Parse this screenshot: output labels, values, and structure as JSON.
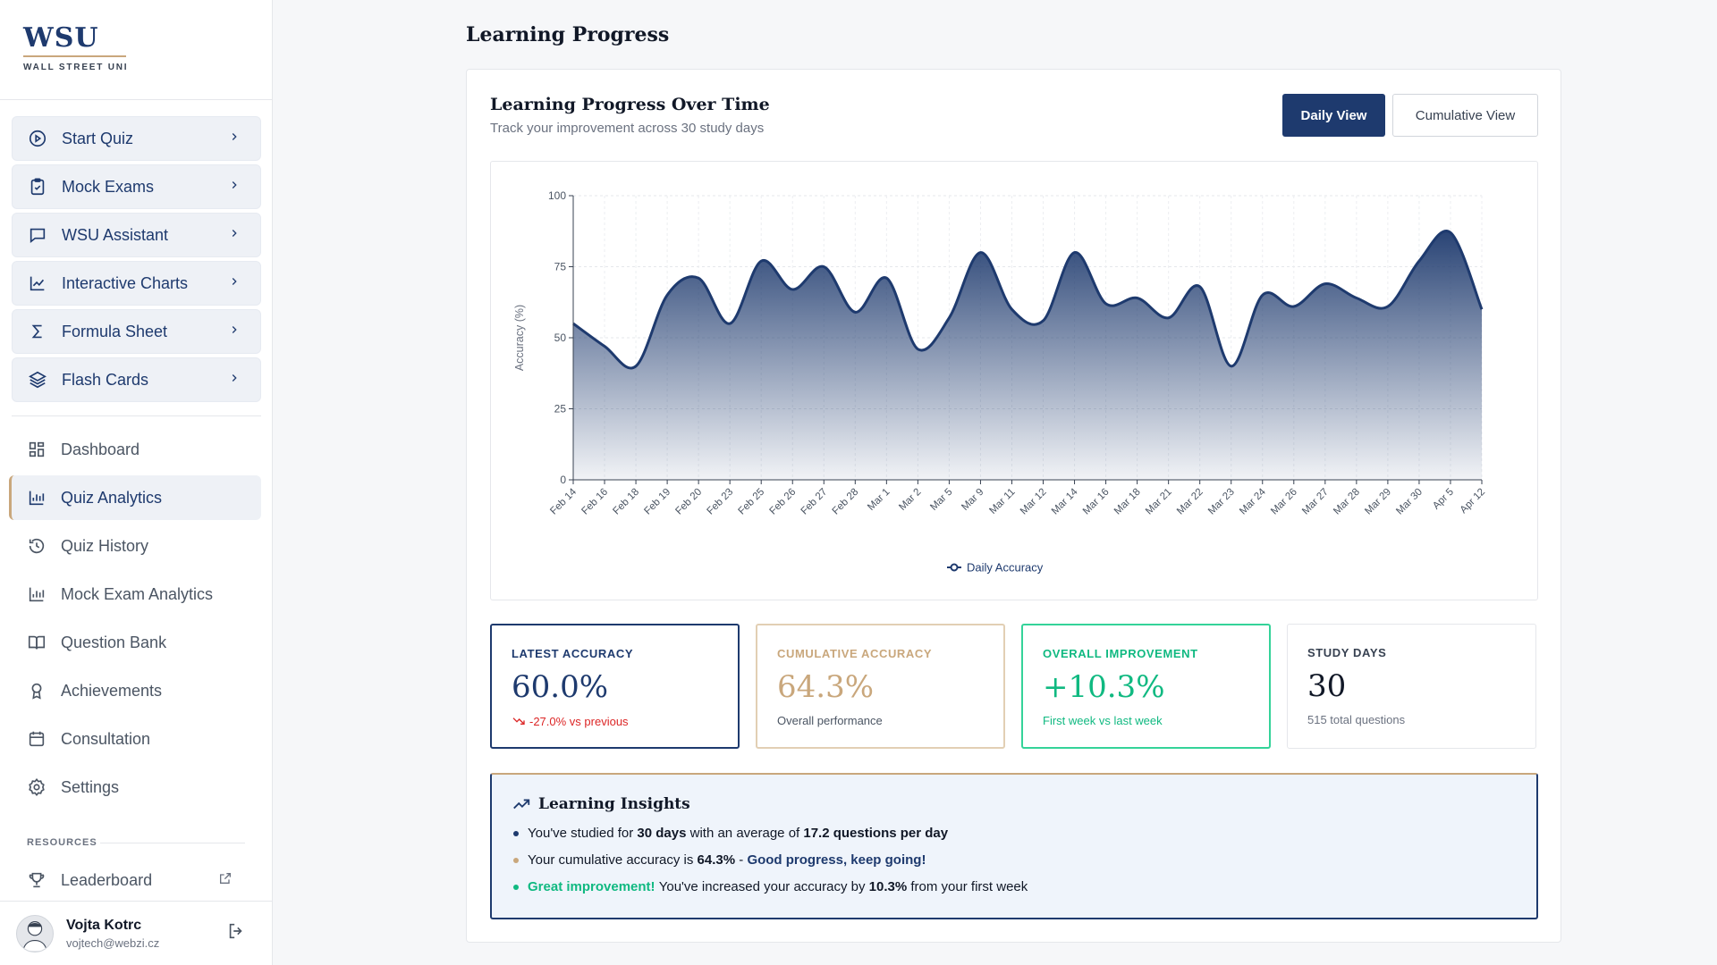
{
  "brand": {
    "mark": "WSU",
    "subtitle": "WALL STREET UNI"
  },
  "quick_actions": [
    {
      "label": "Start Quiz",
      "icon": "play-circle-icon"
    },
    {
      "label": "Mock Exams",
      "icon": "clipboard-check-icon"
    },
    {
      "label": "WSU Assistant",
      "icon": "chat-bubble-icon"
    },
    {
      "label": "Interactive Charts",
      "icon": "line-chart-icon"
    },
    {
      "label": "Formula Sheet",
      "icon": "sigma-icon"
    },
    {
      "label": "Flash Cards",
      "icon": "layers-icon"
    }
  ],
  "nav": [
    {
      "label": "Dashboard",
      "icon": "grid-icon"
    },
    {
      "label": "Quiz Analytics",
      "icon": "bar-chart-icon",
      "active": true
    },
    {
      "label": "Quiz History",
      "icon": "history-icon"
    },
    {
      "label": "Mock Exam Analytics",
      "icon": "bar-chart-icon"
    },
    {
      "label": "Question Bank",
      "icon": "book-icon"
    },
    {
      "label": "Achievements",
      "icon": "award-icon"
    },
    {
      "label": "Consultation",
      "icon": "calendar-icon"
    },
    {
      "label": "Settings",
      "icon": "gear-icon"
    }
  ],
  "resources": {
    "heading": "RESOURCES",
    "items": [
      {
        "label": "Leaderboard",
        "icon": "trophy-icon"
      }
    ]
  },
  "user": {
    "name": "Vojta Kotrc",
    "email": "vojtech@webzi.cz"
  },
  "page_title": "Learning Progress",
  "card": {
    "title": "Learning Progress Over Time",
    "subtitle": "Track your improvement across 30 study days",
    "daily_button": "Daily View",
    "cumulative_button": "Cumulative View"
  },
  "chart_data": {
    "type": "area",
    "ylabel": "Accuracy (%)",
    "ylim": [
      0,
      100
    ],
    "yticks": [
      0,
      25,
      50,
      75,
      100
    ],
    "grid": true,
    "legend": "bottom-center",
    "x": [
      "Feb 14",
      "Feb 16",
      "Feb 18",
      "Feb 19",
      "Feb 20",
      "Feb 23",
      "Feb 25",
      "Feb 26",
      "Feb 27",
      "Feb 28",
      "Mar 1",
      "Mar 2",
      "Mar 5",
      "Mar 9",
      "Mar 11",
      "Mar 12",
      "Mar 14",
      "Mar 16",
      "Mar 18",
      "Mar 21",
      "Mar 22",
      "Mar 23",
      "Mar 24",
      "Mar 26",
      "Mar 27",
      "Mar 28",
      "Mar 29",
      "Mar 30",
      "Apr 5",
      "Apr 12"
    ],
    "series": [
      {
        "name": "Daily Accuracy",
        "color": "#1e3a6e",
        "values": [
          55,
          47,
          40,
          65,
          71,
          55,
          77,
          67,
          75,
          59,
          71,
          46,
          57,
          80,
          60,
          56,
          80,
          62,
          64,
          57,
          68,
          40,
          65,
          61,
          69,
          64,
          61,
          77,
          87,
          60
        ]
      }
    ]
  },
  "stats": [
    {
      "label": "LATEST ACCURACY",
      "value": "60.0%",
      "note": "-27.0% vs previous",
      "icon": "trend-down-icon"
    },
    {
      "label": "CUMULATIVE ACCURACY",
      "value": "64.3%",
      "note": "Overall performance"
    },
    {
      "label": "OVERALL IMPROVEMENT",
      "value": "+10.3%",
      "note": "First week vs last week"
    },
    {
      "label": "STUDY DAYS",
      "value": "30",
      "note": "515 total questions"
    }
  ],
  "insights": {
    "title": "Learning Insights",
    "line1": {
      "a": "You've studied for ",
      "b": "30 days",
      "c": " with an average of ",
      "d": "17.2 questions per day"
    },
    "line2": {
      "a": "Your cumulative accuracy is ",
      "b": "64.3%",
      "c": " - ",
      "d": "Good progress, keep going!"
    },
    "line3": {
      "a": "Great improvement!",
      "b": " You've increased your accuracy by ",
      "c": "10.3%",
      "d": " from your first week"
    }
  },
  "colors": {
    "brand": "#1e3a6e",
    "gold": "#c9a77c",
    "green": "#10b981",
    "red": "#dc2626"
  }
}
